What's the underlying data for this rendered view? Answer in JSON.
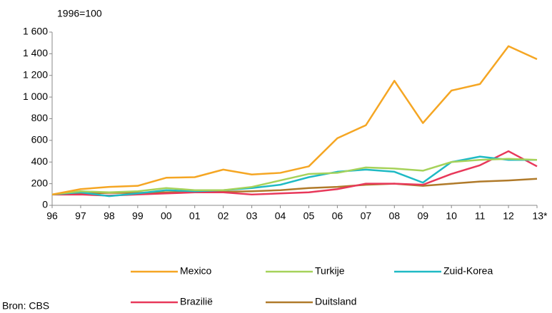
{
  "chart_data": {
    "type": "line",
    "y_axis_label": "1996=100",
    "source": "Bron: CBS",
    "categories": [
      "96",
      "97",
      "98",
      "99",
      "00",
      "01",
      "02",
      "03",
      "04",
      "05",
      "06",
      "07",
      "08",
      "09",
      "10",
      "11",
      "12",
      "13*"
    ],
    "ylim": [
      0,
      1600
    ],
    "yticks": [
      0,
      200,
      400,
      600,
      800,
      {
        "value": 1000,
        "label": "1 000"
      },
      {
        "value": 1200,
        "label": "1 200"
      },
      {
        "value": 1400,
        "label": "1 400"
      },
      {
        "value": 1600,
        "label": "1 600"
      }
    ],
    "grid": false,
    "series": [
      {
        "name": "Mexico",
        "color": "#f5a623",
        "values": [
          100,
          150,
          170,
          180,
          255,
          260,
          330,
          285,
          300,
          360,
          620,
          740,
          1150,
          760,
          1060,
          1120,
          1470,
          1350
        ]
      },
      {
        "name": "Turkije",
        "color": "#a6d25a",
        "values": [
          100,
          130,
          120,
          130,
          160,
          140,
          140,
          170,
          230,
          290,
          300,
          350,
          340,
          320,
          400,
          420,
          430,
          420
        ]
      },
      {
        "name": "Zuid-Korea",
        "color": "#1fbac4",
        "values": [
          100,
          120,
          85,
          110,
          140,
          130,
          140,
          160,
          190,
          260,
          310,
          330,
          310,
          210,
          400,
          450,
          420,
          420
        ]
      },
      {
        "name": "Brazilië",
        "color": "#e8385a",
        "values": [
          100,
          100,
          90,
          100,
          110,
          120,
          120,
          100,
          110,
          120,
          150,
          200,
          200,
          190,
          290,
          370,
          500,
          360
        ]
      },
      {
        "name": "Duitsland",
        "color": "#b07a2a",
        "values": [
          100,
          110,
          115,
          115,
          120,
          125,
          125,
          130,
          140,
          160,
          170,
          190,
          200,
          180,
          200,
          220,
          230,
          245
        ]
      }
    ]
  }
}
